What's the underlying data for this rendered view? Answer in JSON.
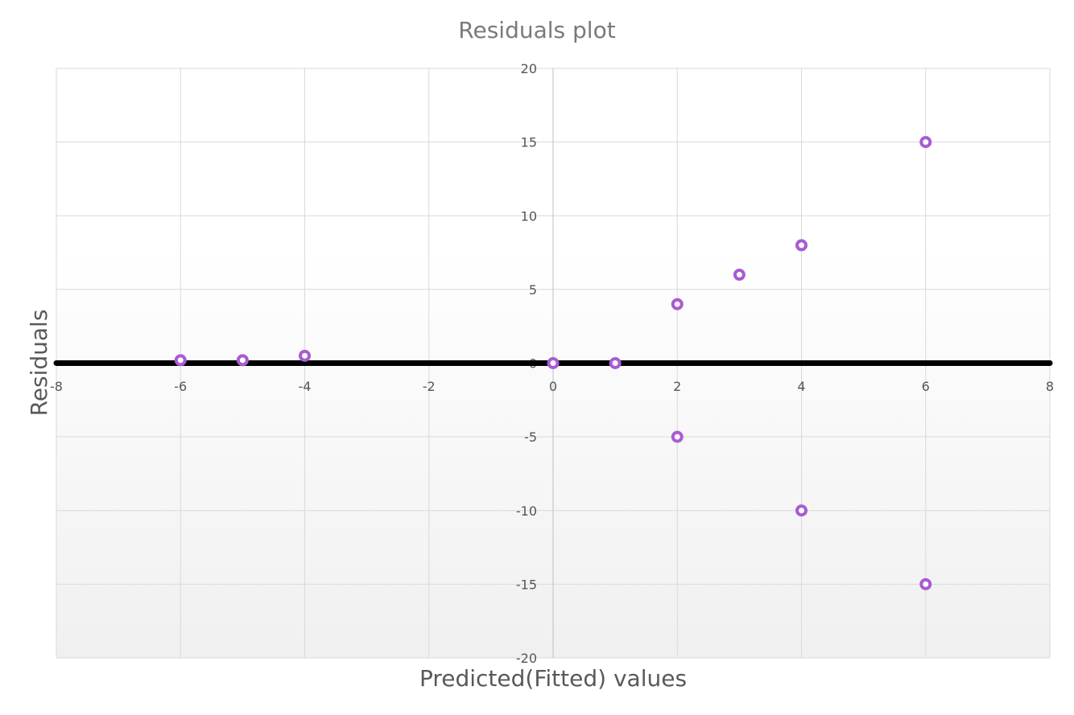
{
  "chart_data": {
    "type": "scatter",
    "title": "Residuals plot",
    "xlabel": "Predicted(Fitted) values",
    "ylabel": "Residuals",
    "xlim": [
      -8,
      8
    ],
    "ylim": [
      -20,
      20
    ],
    "xticks": [
      -8,
      -6,
      -4,
      -2,
      0,
      2,
      4,
      6,
      8
    ],
    "yticks": [
      20,
      15,
      10,
      5,
      0,
      -5,
      -10,
      -15,
      -20
    ],
    "grid": true,
    "legend": "none",
    "reference_line": {
      "y": 0,
      "color": "#000000"
    },
    "colors": {
      "marker": "#a95bd1",
      "marker_center": "#ffffff",
      "grid": "#d9d9d9",
      "title": "#7a7a7a"
    },
    "series": [
      {
        "points": [
          {
            "x": -6,
            "y": 0.2
          },
          {
            "x": -5,
            "y": 0.2
          },
          {
            "x": -4,
            "y": 0.5
          },
          {
            "x": 0,
            "y": 0
          },
          {
            "x": 1,
            "y": 0
          },
          {
            "x": 2,
            "y": 4
          },
          {
            "x": 3,
            "y": 6
          },
          {
            "x": 4,
            "y": 8
          },
          {
            "x": 6,
            "y": 15
          },
          {
            "x": 2,
            "y": -5
          },
          {
            "x": 4,
            "y": -10
          },
          {
            "x": 6,
            "y": -15
          }
        ]
      }
    ]
  }
}
